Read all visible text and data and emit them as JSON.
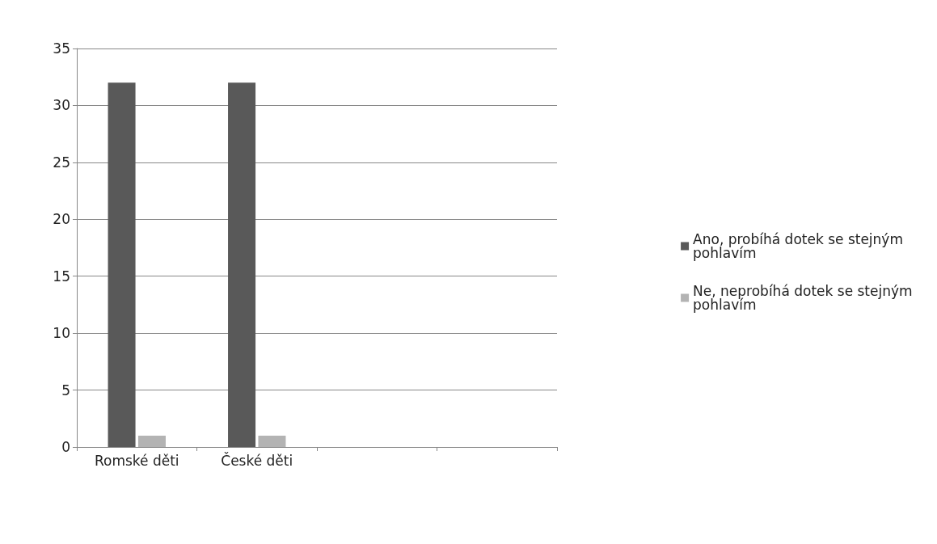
{
  "chart_data": {
    "type": "bar",
    "categories": [
      "Romské děti",
      "České děti",
      null,
      null
    ],
    "series": [
      {
        "name": "Ano, probíhá dotek se stejným pohlavím",
        "color": "#595959",
        "values": [
          32,
          32,
          null,
          null
        ]
      },
      {
        "name": "Ne, neprobíhá dotek se stejným pohlavím",
        "color": "#b3b3b3",
        "values": [
          1,
          1,
          null,
          null
        ]
      }
    ],
    "ylim": [
      0,
      35
    ],
    "yticks": [
      0,
      5,
      10,
      15,
      20,
      25,
      30,
      35
    ],
    "grid": "y",
    "legend": "right"
  }
}
